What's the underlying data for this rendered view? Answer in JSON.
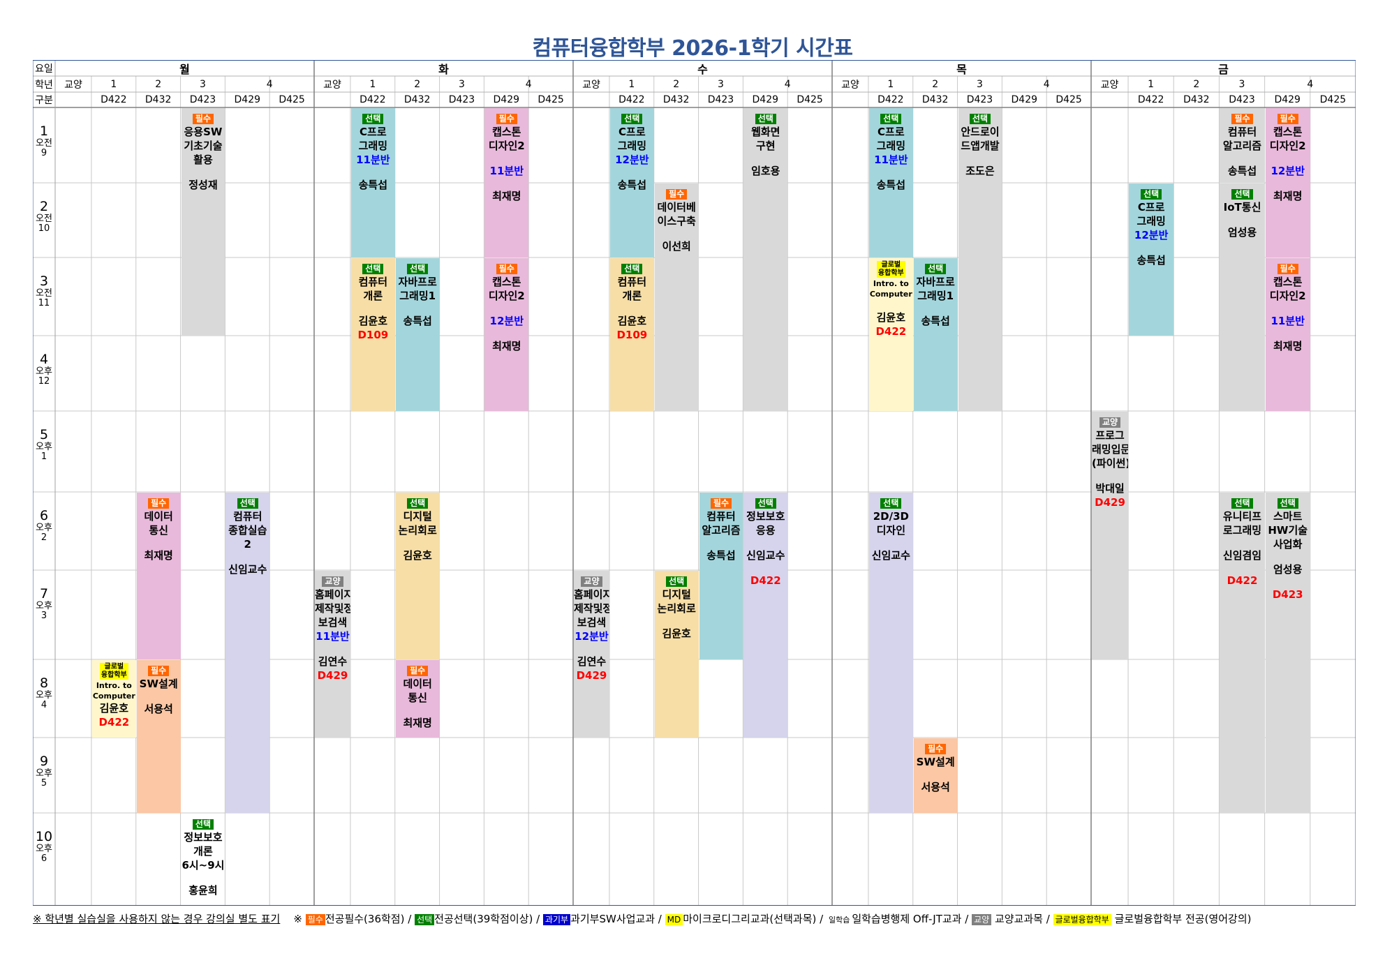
{
  "title": "컴퓨터융합학부 2026-1학기 시간표",
  "header": {
    "row_labels": [
      "요일",
      "학년",
      "구분"
    ],
    "days": [
      "월",
      "화",
      "수",
      "목",
      "금"
    ],
    "grades": [
      "교양",
      "1",
      "2",
      "3",
      "4"
    ],
    "rooms": [
      "D422",
      "D432",
      "D423",
      "D429",
      "D425"
    ]
  },
  "periods": [
    {
      "num": "1",
      "ampm": "오전",
      "hour": "9"
    },
    {
      "num": "2",
      "ampm": "오전",
      "hour": "10"
    },
    {
      "num": "3",
      "ampm": "오전",
      "hour": "11"
    },
    {
      "num": "4",
      "ampm": "오후",
      "hour": "12"
    },
    {
      "num": "5",
      "ampm": "오후",
      "hour": "1"
    },
    {
      "num": "6",
      "ampm": "오후",
      "hour": "2"
    },
    {
      "num": "7",
      "ampm": "오후",
      "hour": "3"
    },
    {
      "num": "8",
      "ampm": "오후",
      "hour": "4"
    },
    {
      "num": "9",
      "ampm": "오후",
      "hour": "5"
    },
    {
      "num": "10",
      "ampm": "오후",
      "hour": "6"
    }
  ],
  "badges": {
    "required": "필수",
    "elective": "선택",
    "liberal": "교양",
    "global": "글로벌\n융합학부"
  },
  "colors": {
    "title": "#2f5597",
    "required_badge": "#ff6600",
    "elective_badge": "#008000",
    "liberal_badge": "#808080",
    "global_badge": "#ffff00",
    "cyan": "#a3d6dc",
    "pink": "#e8b9da",
    "gray": "#d9d9d9",
    "tan": "#f6dea6",
    "lavender": "#d5d4ec",
    "peach": "#fbc7a4",
    "lightyellow": "#fff7cb",
    "section": "#0000ff",
    "room": "#ff0000"
  },
  "courses": [
    {
      "day": 0,
      "col": 3,
      "start": 1,
      "end": 4,
      "color": "gray",
      "badge": "required",
      "lines": [
        "응용SW",
        "기초기술",
        "활용",
        "",
        "정성재"
      ]
    },
    {
      "day": 0,
      "col": 1,
      "start": 8,
      "end": 9,
      "color": "lightyellow",
      "badge": "global",
      "lines": [
        "Intro. to",
        "Computer",
        "김윤호"
      ],
      "small": [
        0,
        1
      ],
      "room": "D422"
    },
    {
      "day": 0,
      "col": 2,
      "start": 6,
      "end": 8,
      "color": "pink",
      "badge": "required",
      "lines": [
        "데이터",
        "통신",
        "",
        "최재명"
      ]
    },
    {
      "day": 0,
      "col": 2,
      "start": 8,
      "end": 10,
      "color": "peach",
      "badge": "required",
      "lines": [
        "SW설계",
        "",
        "서용석"
      ]
    },
    {
      "day": 0,
      "col": 4,
      "start": 6,
      "end": 10,
      "color": "lavender",
      "badge": "elective",
      "lines": [
        "컴퓨터",
        "종합실습",
        "2",
        "",
        "신임교수"
      ]
    },
    {
      "day": 0,
      "col": 3,
      "start": 10,
      "end": 11,
      "color": "none",
      "badge": "elective",
      "lines": [
        "정보보호",
        "개론",
        "6시~9시",
        "",
        "홍윤희"
      ]
    },
    {
      "day": 1,
      "col": 1,
      "start": 1,
      "end": 3,
      "color": "cyan",
      "badge": "elective",
      "lines": [
        "C프로",
        "그래밍"
      ],
      "section": "11분반",
      "after": [
        "",
        "송특섭"
      ]
    },
    {
      "day": 1,
      "col": 4,
      "start": 1,
      "end": 3,
      "color": "pink",
      "badge": "required",
      "lines": [
        "캡스톤",
        "디자인2",
        ""
      ],
      "section": "11분반",
      "after": [
        "",
        "최재명"
      ]
    },
    {
      "day": 1,
      "col": 1,
      "start": 3,
      "end": 5,
      "color": "tan",
      "badge": "elective",
      "lines": [
        "컴퓨터",
        "개론",
        "",
        "김윤호"
      ],
      "room": "D109"
    },
    {
      "day": 1,
      "col": 2,
      "start": 3,
      "end": 5,
      "color": "cyan",
      "badge": "elective",
      "lines": [
        "자바프로",
        "그래밍1",
        "",
        "송특섭"
      ]
    },
    {
      "day": 1,
      "col": 4,
      "start": 3,
      "end": 5,
      "color": "pink",
      "badge": "required",
      "lines": [
        "캡스톤",
        "디자인2",
        ""
      ],
      "section": "12분반",
      "after": [
        "",
        "최재명"
      ]
    },
    {
      "day": 1,
      "col": 2,
      "start": 6,
      "end": 8,
      "color": "tan",
      "badge": "elective",
      "lines": [
        "디지털",
        "논리회로",
        "",
        "김윤호"
      ]
    },
    {
      "day": 1,
      "col": 0,
      "start": 7,
      "end": 9,
      "color": "gray",
      "badge": "liberal",
      "lines": [
        "홈페이지",
        "제작및정",
        "보검색"
      ],
      "section": "11분반",
      "after": [
        "",
        "김연수"
      ],
      "room": "D429"
    },
    {
      "day": 1,
      "col": 2,
      "start": 8,
      "end": 9,
      "color": "pink",
      "badge": "required",
      "lines": [
        "데이터",
        "통신",
        "",
        "최재명"
      ]
    },
    {
      "day": 2,
      "col": 1,
      "start": 1,
      "end": 3,
      "color": "cyan",
      "badge": "elective",
      "lines": [
        "C프로",
        "그래밍"
      ],
      "section": "12분반",
      "after": [
        "",
        "송특섭"
      ]
    },
    {
      "day": 2,
      "col": 4,
      "start": 1,
      "end": 5,
      "color": "gray",
      "badge": "elective",
      "lines": [
        "웹화면",
        "구현",
        "",
        "임호용"
      ]
    },
    {
      "day": 2,
      "col": 2,
      "start": 2,
      "end": 5,
      "color": "gray",
      "badge": "required",
      "lines": [
        "데이터베",
        "이스구축",
        "",
        "이선희"
      ]
    },
    {
      "day": 2,
      "col": 1,
      "start": 3,
      "end": 5,
      "color": "tan",
      "badge": "elective",
      "lines": [
        "컴퓨터",
        "개론",
        "",
        "김윤호"
      ],
      "room": "D109"
    },
    {
      "day": 2,
      "col": 3,
      "start": 6,
      "end": 8,
      "color": "cyan",
      "badge": "required",
      "lines": [
        "컴퓨터",
        "알고리즘",
        "",
        "송특섭"
      ]
    },
    {
      "day": 2,
      "col": 4,
      "start": 6,
      "end": 9,
      "color": "lavender",
      "badge": "elective",
      "lines": [
        "정보보호",
        "응용",
        "",
        "신임교수",
        ""
      ],
      "room": "D422"
    },
    {
      "day": 2,
      "col": 0,
      "start": 7,
      "end": 9,
      "color": "gray",
      "badge": "liberal",
      "lines": [
        "홈페이지",
        "제작및정",
        "보검색"
      ],
      "section": "12분반",
      "after": [
        "",
        "김연수"
      ],
      "room": "D429"
    },
    {
      "day": 2,
      "col": 2,
      "start": 7,
      "end": 9,
      "color": "tan",
      "badge": "elective",
      "lines": [
        "디지털",
        "논리회로",
        "",
        "김윤호"
      ]
    },
    {
      "day": 3,
      "col": 1,
      "start": 1,
      "end": 3,
      "color": "cyan",
      "badge": "elective",
      "lines": [
        "C프로",
        "그래밍"
      ],
      "section": "11분반",
      "after": [
        "",
        "송특섭"
      ]
    },
    {
      "day": 3,
      "col": 3,
      "start": 1,
      "end": 5,
      "color": "gray",
      "badge": "elective",
      "lines": [
        "안드로이",
        "드앱개발",
        "",
        "조도은"
      ]
    },
    {
      "day": 3,
      "col": 1,
      "start": 3,
      "end": 5,
      "color": "lightyellow",
      "badge": "global",
      "lines": [
        "Intro. to",
        "Computer",
        "",
        "김윤호"
      ],
      "small": [
        0,
        1
      ],
      "room": "D422"
    },
    {
      "day": 3,
      "col": 2,
      "start": 3,
      "end": 5,
      "color": "cyan",
      "badge": "elective",
      "lines": [
        "자바프로",
        "그래밍1",
        "",
        "송특섭"
      ]
    },
    {
      "day": 3,
      "col": 1,
      "start": 6,
      "end": 10,
      "color": "lavender",
      "badge": "elective",
      "lines": [
        "2D/3D",
        "디자인",
        "",
        "신임교수"
      ]
    },
    {
      "day": 3,
      "col": 2,
      "start": 9,
      "end": 10,
      "color": "peach",
      "badge": "required",
      "lines": [
        "SW설계",
        "",
        "서용석"
      ]
    },
    {
      "day": 4,
      "col": 3,
      "start": 1,
      "end": 2,
      "color": "gray",
      "badge": "required",
      "lines": [
        "컴퓨터",
        "알고리즘",
        "",
        "송특섭"
      ]
    },
    {
      "day": 4,
      "col": 4,
      "start": 1,
      "end": 3,
      "color": "pink",
      "badge": "required",
      "lines": [
        "캡스톤",
        "디자인2",
        ""
      ],
      "section": "12분반",
      "after": [
        "",
        "최재명"
      ]
    },
    {
      "day": 4,
      "col": 1,
      "start": 2,
      "end": 4,
      "color": "cyan",
      "badge": "elective",
      "lines": [
        "C프로",
        "그래밍"
      ],
      "section": "12분반",
      "after": [
        "",
        "송특섭"
      ]
    },
    {
      "day": 4,
      "col": 3,
      "start": 2,
      "end": 5,
      "color": "gray",
      "badge": "elective",
      "lines": [
        "IoT통신",
        "",
        "엄성용"
      ]
    },
    {
      "day": 4,
      "col": 4,
      "start": 3,
      "end": 5,
      "color": "pink",
      "badge": "required",
      "lines": [
        "캡스톤",
        "디자인2",
        ""
      ],
      "section": "11분반",
      "after": [
        "",
        "최재명"
      ]
    },
    {
      "day": 4,
      "col": 0,
      "start": 5,
      "end": 8,
      "color": "gray",
      "badge": "liberal",
      "lines": [
        "프로그",
        "래밍입문",
        "(파이썬)",
        "",
        "박대일"
      ],
      "room": "D429"
    },
    {
      "day": 4,
      "col": 3,
      "start": 6,
      "end": 10,
      "color": "gray",
      "badge": "elective",
      "lines": [
        "유니티프",
        "로그래밍",
        "",
        "신임겸임",
        ""
      ],
      "room": "D422"
    },
    {
      "day": 4,
      "col": 4,
      "start": 6,
      "end": 10,
      "color": "gray",
      "badge": "elective",
      "lines": [
        "스마트",
        "HW기술",
        "사업화",
        "",
        "엄성용",
        ""
      ],
      "room": "D423"
    }
  ],
  "legend": {
    "note1": "※ 학년별 실습실을 사용하지 않는 경우 강의실 별도 표기",
    "note2": "※",
    "required_label": "필수",
    "required_text": "전공필수(36학점) /",
    "elective_label": "선택",
    "elective_text": "전공선택(39학점이상) /",
    "sw_label": "과기부",
    "sw_text": "과기부SW사업교과 /",
    "md_label": "MD",
    "md_text": "마이크로디그리교과(선택과목) /",
    "ilhak_label": "일학습",
    "ilhak_text": "일학습병행제 Off-JT교과 /",
    "liberal_label": "교양",
    "liberal_text": "교양교과목 /",
    "global_label": "글로벌융합학부",
    "global_text": "글로벌융합학부 전공(영어강의)"
  }
}
